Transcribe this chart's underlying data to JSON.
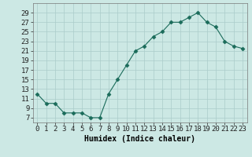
{
  "x": [
    0,
    1,
    2,
    3,
    4,
    5,
    6,
    7,
    8,
    9,
    10,
    11,
    12,
    13,
    14,
    15,
    16,
    17,
    18,
    19,
    20,
    21,
    22,
    23
  ],
  "y": [
    12,
    10,
    10,
    8,
    8,
    8,
    7,
    7,
    12,
    15,
    18,
    21,
    22,
    24,
    25,
    27,
    27,
    28,
    29,
    27,
    26,
    23,
    22,
    21.5
  ],
  "line_color": "#1a6b5a",
  "marker": "D",
  "marker_size": 2.5,
  "bg_color": "#cce8e4",
  "grid_color": "#aaccca",
  "xlabel": "Humidex (Indice chaleur)",
  "ylim": [
    6,
    31
  ],
  "xlim": [
    -0.5,
    23.5
  ],
  "yticks": [
    7,
    9,
    11,
    13,
    15,
    17,
    19,
    21,
    23,
    25,
    27,
    29
  ],
  "xticks": [
    0,
    1,
    2,
    3,
    4,
    5,
    6,
    7,
    8,
    9,
    10,
    11,
    12,
    13,
    14,
    15,
    16,
    17,
    18,
    19,
    20,
    21,
    22,
    23
  ],
  "xlabel_fontsize": 7,
  "tick_fontsize": 6.5
}
